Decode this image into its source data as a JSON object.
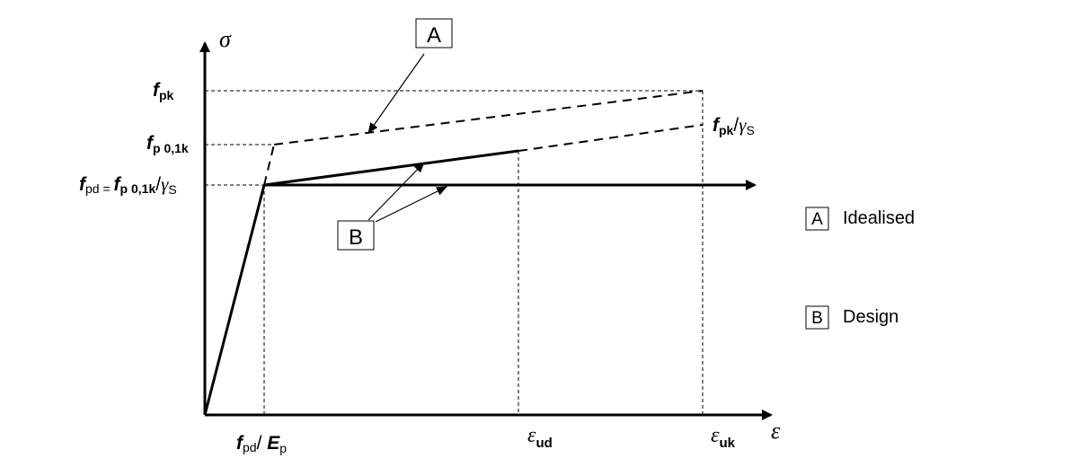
{
  "axes": {
    "y_symbol": "σ",
    "x_symbol": "ε"
  },
  "y_labels": {
    "fpk": {
      "main": "f",
      "sub": "pk"
    },
    "fp01k": {
      "main": "f",
      "sub": "p 0,1k"
    },
    "fpd": {
      "main": "f",
      "sub": "pd",
      "eq": " = ",
      "main2": "f",
      "sub2": "p 0,1k",
      "slash": "/",
      "gamma": "γ",
      "gamma_sub": "S"
    }
  },
  "x_labels": {
    "fpd_ep": {
      "main": "f",
      "sub": "pd",
      "slash": "/ ",
      "e": "E",
      "e_sub": "p"
    },
    "eud": {
      "main": "ε",
      "sub": "ud"
    },
    "euk": {
      "main": "ε",
      "sub": "uk"
    }
  },
  "line_label": {
    "main": "f",
    "sub": "pk",
    "slash": "/",
    "gamma": "γ",
    "gamma_sub": "S"
  },
  "callouts": {
    "A": "A",
    "B": "B"
  },
  "legend": [
    {
      "key": "A",
      "text": "Idealised"
    },
    {
      "key": "B",
      "text": "Design"
    }
  ]
}
